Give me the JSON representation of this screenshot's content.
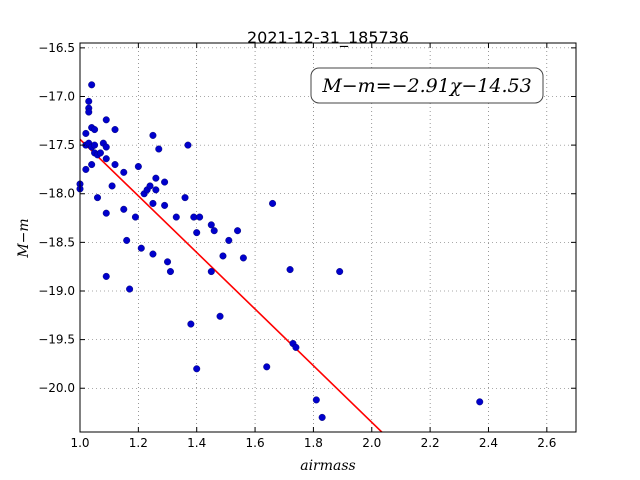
{
  "chart_data": {
    "type": "scatter",
    "title": "2021-12-31_185736",
    "xlabel": "airmass",
    "ylabel": "M−m",
    "annotation": "M−m=−2.91χ−14.53",
    "xlim": [
      1.0,
      2.7
    ],
    "ylim": [
      -20.45,
      -16.45
    ],
    "x_ticks": [
      1.0,
      1.2,
      1.4,
      1.6,
      1.8,
      2.0,
      2.2,
      2.4,
      2.6
    ],
    "x_tick_labels": [
      "1.0",
      "1.2",
      "1.4",
      "1.6",
      "1.8",
      "2.0",
      "2.2",
      "2.4",
      "2.6"
    ],
    "y_ticks": [
      -16.5,
      -17.0,
      -17.5,
      -18.0,
      -18.5,
      -19.0,
      -19.5,
      -20.0
    ],
    "y_tick_labels": [
      "−16.5",
      "−17.0",
      "−17.5",
      "−18.0",
      "−18.5",
      "−19.0",
      "−19.5",
      "−20.0"
    ],
    "grid": true,
    "colors": {
      "points": "#0000cc",
      "fit_line": "#ff0000",
      "grid": "#555555"
    },
    "fit": {
      "slope": -2.91,
      "intercept": -14.53
    },
    "series": [
      {
        "values": [
          [
            1.0,
            -17.9
          ],
          [
            1.0,
            -17.95
          ],
          [
            1.02,
            -17.38
          ],
          [
            1.02,
            -17.75
          ],
          [
            1.02,
            -17.5
          ],
          [
            1.03,
            -17.05
          ],
          [
            1.03,
            -17.12
          ],
          [
            1.03,
            -17.16
          ],
          [
            1.03,
            -17.48
          ],
          [
            1.04,
            -16.88
          ],
          [
            1.04,
            -17.32
          ],
          [
            1.04,
            -17.7
          ],
          [
            1.04,
            -17.52
          ],
          [
            1.05,
            -17.34
          ],
          [
            1.05,
            -17.5
          ],
          [
            1.05,
            -17.58
          ],
          [
            1.06,
            -17.6
          ],
          [
            1.06,
            -18.04
          ],
          [
            1.07,
            -17.58
          ],
          [
            1.08,
            -17.48
          ],
          [
            1.09,
            -17.24
          ],
          [
            1.09,
            -17.52
          ],
          [
            1.09,
            -17.64
          ],
          [
            1.09,
            -18.2
          ],
          [
            1.09,
            -18.85
          ],
          [
            1.11,
            -17.92
          ],
          [
            1.12,
            -17.34
          ],
          [
            1.12,
            -17.7
          ],
          [
            1.15,
            -17.78
          ],
          [
            1.15,
            -18.16
          ],
          [
            1.16,
            -18.48
          ],
          [
            1.17,
            -18.98
          ],
          [
            1.19,
            -18.24
          ],
          [
            1.2,
            -17.72
          ],
          [
            1.21,
            -18.56
          ],
          [
            1.22,
            -18.0
          ],
          [
            1.23,
            -17.96
          ],
          [
            1.24,
            -17.92
          ],
          [
            1.25,
            -17.4
          ],
          [
            1.25,
            -18.1
          ],
          [
            1.25,
            -18.62
          ],
          [
            1.26,
            -17.84
          ],
          [
            1.26,
            -17.96
          ],
          [
            1.27,
            -17.54
          ],
          [
            1.29,
            -17.88
          ],
          [
            1.29,
            -18.12
          ],
          [
            1.3,
            -18.7
          ],
          [
            1.31,
            -18.8
          ],
          [
            1.33,
            -18.24
          ],
          [
            1.36,
            -18.04
          ],
          [
            1.37,
            -17.5
          ],
          [
            1.38,
            -19.34
          ],
          [
            1.39,
            -18.24
          ],
          [
            1.4,
            -18.4
          ],
          [
            1.4,
            -19.8
          ],
          [
            1.41,
            -18.24
          ],
          [
            1.45,
            -18.8
          ],
          [
            1.45,
            -18.32
          ],
          [
            1.46,
            -18.38
          ],
          [
            1.48,
            -19.26
          ],
          [
            1.49,
            -18.64
          ],
          [
            1.51,
            -18.48
          ],
          [
            1.54,
            -18.38
          ],
          [
            1.56,
            -18.66
          ],
          [
            1.64,
            -19.78
          ],
          [
            1.66,
            -18.1
          ],
          [
            1.72,
            -18.78
          ],
          [
            1.73,
            -19.54
          ],
          [
            1.74,
            -19.58
          ],
          [
            1.81,
            -20.12
          ],
          [
            1.83,
            -20.3
          ],
          [
            1.89,
            -18.8
          ],
          [
            2.37,
            -20.14
          ]
        ]
      }
    ]
  }
}
